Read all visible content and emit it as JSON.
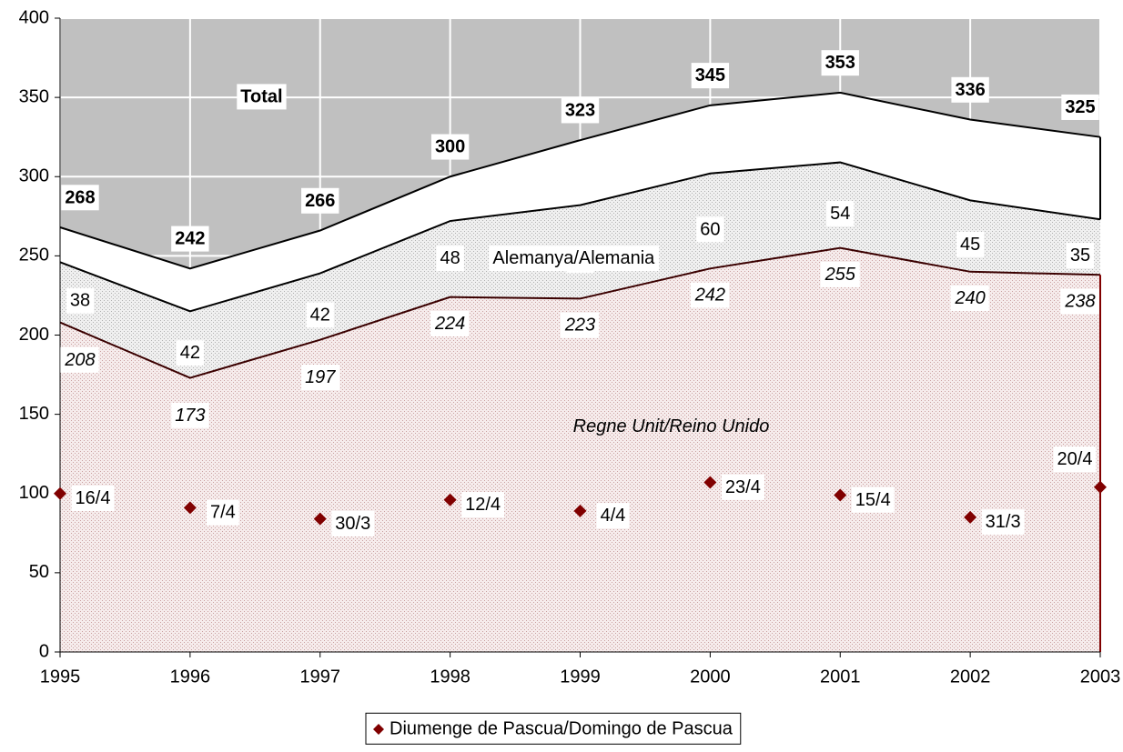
{
  "chart_data": {
    "type": "stacked-area",
    "categories": [
      "1995",
      "1996",
      "1997",
      "1998",
      "1999",
      "2000",
      "2001",
      "2002",
      "2003"
    ],
    "ylim": [
      0,
      400
    ],
    "yticks": [
      0,
      50,
      100,
      150,
      200,
      250,
      300,
      350,
      400
    ],
    "grid": true,
    "legend": "bottom",
    "series": [
      {
        "name": "Regne Unit/Reino Unido",
        "color": "#e8c8c8",
        "values": [
          208,
          173,
          197,
          224,
          223,
          242,
          255,
          240,
          238
        ]
      },
      {
        "name": "Alemanya/Alemania",
        "color": "#d8d8d8",
        "values": [
          38,
          42,
          42,
          48,
          59,
          60,
          54,
          45,
          35
        ]
      },
      {
        "name": "Total",
        "color": "#ffffff",
        "values": [
          268,
          242,
          266,
          300,
          323,
          345,
          353,
          336,
          325
        ]
      },
      {
        "name": "Diumenge de Pascua/Domingo de Pascua",
        "color": "#800000",
        "type": "scatter",
        "values": [
          100,
          91,
          84,
          96,
          89,
          107,
          99,
          85,
          104
        ],
        "point_labels": [
          "16/4",
          "7/4",
          "30/3",
          "12/4",
          "4/4",
          "23/4",
          "15/4",
          "31/3",
          "20/4"
        ]
      }
    ]
  }
}
